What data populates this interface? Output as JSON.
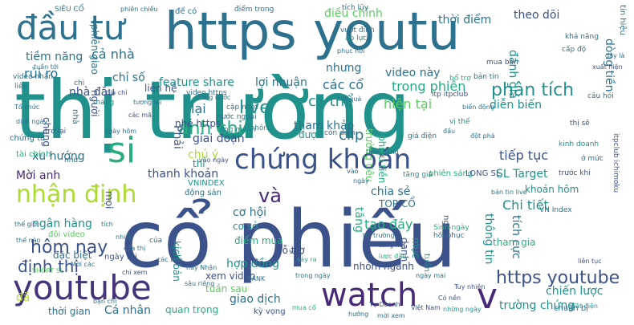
{
  "words": {
    "thi_truong": "thị trường",
    "co_phieu": "cổ phiếu",
    "https_youtu": "https youtu",
    "dau_tu": "đầu tư",
    "youtube": "youtube",
    "watch": "watch",
    "chung_khoan": "chứng khoán",
    "nhan_dinh": "nhận định",
    "si": "si",
    "v": "v",
    "live": "live",
    "anh_chi": "anh chị",
    "hom_nay": "hôm nay",
    "dinh_thi": "định thị",
    "https_youtube": "https youtube",
    "va": "và",
    "phan_tich": "phân tích",
    "feature_share": "feature share",
    "tiem_nang": "tiềm năng",
    "ca_nha": "cả nhà",
    "loi_nhuan": "lợi nhuận",
    "dieu_chinh": "điều chỉnh",
    "thoi_diem": "thời điểm",
    "theo_doi": "theo dõi",
    "rui_ro": "rủi ro",
    "chi_so": "chỉ số",
    "video_nay": "video này",
    "nhung": "nhưng",
    "cac_co": "các cổ",
    "co_the": "có thể",
    "trong_phien": "trong phiên",
    "hien_tai": "hiện tại",
    "dien_bien": "diễn biến",
    "danh_gia": "đánh giá",
    "tham_khao": "tham khảo",
    "lai": "lại",
    "clip": "clip",
    "giai_doan": "giai đoạn",
    "nhe_https": "nhé https",
    "xu_huong": "xu hướng",
    "chu_y": "chú ý",
    "thanh_khoan": "thanh khoản",
    "tiep_tuc": "tiếp tục",
    "sl_target": "SL Target",
    "khoan_hom": "khoản hôm",
    "chi_tiet": "Chi tiết",
    "co_hoi": "cơ hội",
    "tao_day": "tạo đáy",
    "chia_se": "chia sẻ",
    "top_co": "TOP CỔ",
    "ngan_hang": "ngân hàng",
    "diem_mua": "điểm mua",
    "ho_tro": "hỗ trợ",
    "hop_dong": "hợp đồng",
    "xem_video": "xem video",
    "nhom_nganh": "nhóm ngành",
    "giao_dich": "giao dịch",
    "chien_luoc": "chiến lược",
    "truong_chung": "trường chứng",
    "ca_nhan": "Cá nhân",
    "thoi_gian": "thời gian",
    "quan_trong": "quan trọng",
    "tuan_sau": "tuần sau",
    "moi_anh": "Mời anh",
    "tai_chinh": "tài chính",
    "chung_ta": "chứng ta",
    "nha_dau": "nhà đầu",
    "lien_he": "liên hệ",
    "phien_giao": "phiên giao",
    "vninde_x": "VNINDEX",
    "dong_san": "động sản",
    "co_so": "cơ sở",
    "doi_video": "đôi video",
    "dac_biet": "đặc biệt",
    "ngay_thi": "ngày thi",
    "da": "đã",
    "duoc": "được",
    "tang": "tăng",
    "thong_tin": "thông tin",
    "tich_cuc": "tích cực",
    "tham_gia": "tham gia",
    "dong_tien": "dòng tiền",
    "phai": "Phải",
    "moi": "mọi",
    "nguoi": "người",
    "thi_small": "thì",
    "danh": "danh",
    "muc": "mục",
    "kich_ban": "kịch bản",
    "ky_vong": "kỳ vọng",
    "truong_tieu": "trường tiêu",
    "tin_hieu": "tín hiệu",
    "phieu_tien": "phiếu tiền",
    "tiem_nang2": "tiềm năng",
    "video_https": "video https",
    "tang_manh": "tăng mạnh",
    "nuoc_ngoai": "nước ngoài",
    "cap_nhat": "cập nhật",
    "khong": "không",
    "con_dien": "còn diễn",
    "itp_itpclub": "itp itpclub",
    "vi_the": "vị thế",
    "bo_tro": "bổ trợ",
    "gia_dien": "giá điện",
    "phien_sang": "phiên sáng",
    "long_sl": "LONG SL",
    "ban_tin": "bản tin",
    "tang_gia": "tăng giá",
    "ban_tin_live": "bản tin live",
    "thi_se": "thị sẽ",
    "cau_hoi": "câu hỏi",
    "kinh_doanh": "kinh doanh",
    "vnindex_small": "VN Index",
    "sinh_ngay": "Sinh ngày",
    "hoi_phuc": "hồi phục",
    "o_muc": "ở mức",
    "truoc_khi": "trước khi",
    "itpclub_ichimoku": "itpclub ichimoku",
    "dat_dien": "đặt điện",
    "chuan_bi": "chuẩn bị",
    "tuy_nhien": "Tuy nhiên",
    "viet_nam": "Việt Nam",
    "ngan_han": "ngắn hạn",
    "co_nen": "Có nền",
    "nhung_ngay": "những ngày",
    "day_la": "đây là",
    "sieu_co": "SIÊU CỔ",
    "tich_luy": "tích lũy",
    "vuot_dinh": "vượt đỉnh",
    "ap_luc": "áp lực",
    "phien_chieu": "phiên chiều",
    "de_co": "để có",
    "diem_trong": "điểm trong",
    "phuc_hoi": "phục hồi",
    "tuan_toi": "tuần tới",
    "mua_ban": "mua bán",
    "xuat_hien": "xuất hiện",
    "kha_nang": "khả năng",
    "cap_do": "cấp độ",
    "to_chuc": "Tổ chức",
    "nhu": "như",
    "tro_lai": "trở lại",
    "video_nhan": "video nhận",
    "ty_doanh": "Tự Doanh",
    "nay_nhan": "nay Nhận",
    "short_sl": "SHORT SL",
    "say_ra": "sảy ra",
    "moi_cac": "Mời các",
    "chi_xem": "chỉ xem",
    "cua_thi": "của thị",
    "voi": "với",
    "nhieu": "nhiều",
    "sau_rieng": "sâu riêng",
    "vao_ngay": "vào ngày",
    "trong_ngay": "trong ngày",
    "mua_co": "mua cổ",
    "moi_xem": "mời xem",
    "trong_nuoc": "trong nước",
    "tong_ket": "tổng kết",
    "thi_truong_small": "thị trường",
    "luoc_dau": "lược đầu",
    "dot_pha": "đột phá",
    "bien_dong": "biến động",
    "dau": "đầu",
    "dia_chi": "địa chỉ",
    "tuan": "tuần",
    "chung": "chung",
    "ngay_hom": "ngày hôm",
    "cac_ban": "các bạn",
    "thang": "tháng",
    "lien": "liên",
    "tuong_lai": "tương lai",
    "ngay_mai": "ngày mai",
    "dich_ngay": "dịch ngày",
    "cua": "của",
    "ket_qua": "kết quả",
    "huong": "hướng",
    "cac_ma": "các mã",
    "bank": "BANK",
    "tich": "tích",
    "vao": "vào",
    "ngay": "ngày",
    "lien_tuc": "liên tục",
    "the_nao": "thế nào",
    "the_gioi": "thế giới",
    "ban_chi": "bạn chỉ",
    "nha": "nhà",
    "chi": "chi"
  }
}
